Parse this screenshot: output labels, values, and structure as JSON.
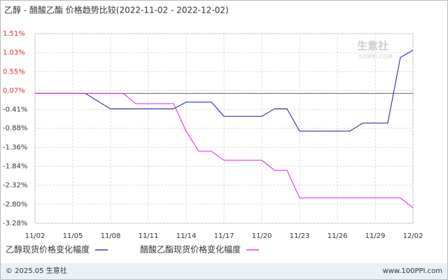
{
  "chart_data": {
    "type": "line",
    "title": "乙醇 - 醋酸乙酯 价格趋势比较(2022-11-02 - 2022-12-02)",
    "watermark": "生意社",
    "watermark_sub": "100PPI.COM",
    "categories": [
      "11/02",
      null,
      null,
      "11/05",
      null,
      null,
      "11/08",
      null,
      null,
      "11/11",
      null,
      null,
      "11/14",
      null,
      null,
      "11/17",
      null,
      null,
      "11/20",
      null,
      null,
      "11/23",
      null,
      null,
      "11/26",
      null,
      null,
      "11/29",
      null,
      null,
      "12/02"
    ],
    "series": [
      {
        "name": "乙醇现货价格变化幅度",
        "color": "#1a1aa0",
        "values": [
          0,
          0,
          0,
          0,
          0,
          -0.2,
          -0.39,
          -0.39,
          -0.39,
          -0.39,
          -0.39,
          -0.39,
          -0.22,
          -0.22,
          -0.22,
          -0.58,
          -0.58,
          -0.58,
          -0.58,
          -0.39,
          -0.39,
          -0.95,
          -0.95,
          -0.95,
          -0.95,
          -0.95,
          -0.75,
          -0.75,
          -0.75,
          0.91,
          1.09
        ]
      },
      {
        "name": "醋酸乙酯现货价格变化幅度",
        "color": "#e020e0",
        "values": [
          0,
          0,
          0,
          0,
          0,
          0,
          0,
          0,
          -0.26,
          -0.26,
          -0.26,
          -0.26,
          -0.96,
          -1.46,
          -1.46,
          -1.69,
          -1.69,
          -1.69,
          -1.69,
          -1.94,
          -1.94,
          -2.64,
          -2.64,
          -2.64,
          -2.64,
          -2.64,
          -2.64,
          -2.64,
          -2.64,
          -2.64,
          -2.89
        ]
      }
    ],
    "ylim": [
      -3.28,
      1.51
    ],
    "yticks": [
      {
        "value": 1.51,
        "label": "1.51%"
      },
      {
        "value": 1.03,
        "label": "1.03%"
      },
      {
        "value": 0.55,
        "label": "0.55%"
      },
      {
        "value": 0.07,
        "label": "0.07%"
      },
      {
        "value": -0.41,
        "label": "-0.41%"
      },
      {
        "value": -0.88,
        "label": "-0.88%"
      },
      {
        "value": -1.36,
        "label": "-1.36%"
      },
      {
        "value": -1.84,
        "label": "-1.84%"
      },
      {
        "value": -2.32,
        "label": "-2.32%"
      },
      {
        "value": -2.8,
        "label": "-2.80%"
      },
      {
        "value": -3.28,
        "label": "-3.28%"
      }
    ],
    "grid": true,
    "zero_line": true,
    "footer_left": "© 2025.05 生意社",
    "footer_right": "www.100PPI.com"
  }
}
